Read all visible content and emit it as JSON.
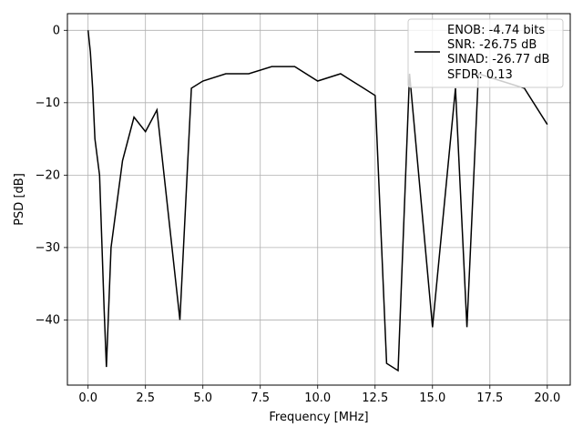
{
  "chart_data": {
    "type": "line",
    "xlabel": "Frequency [MHz]",
    "ylabel": "PSD [dB]",
    "xlim": [
      -0.9,
      21.0
    ],
    "ylim": [
      -49.0,
      2.3
    ],
    "xticks": [
      0.0,
      2.5,
      5.0,
      7.5,
      10.0,
      12.5,
      15.0,
      17.5,
      20.0
    ],
    "xtick_labels": [
      "0.0",
      "2.5",
      "5.0",
      "7.5",
      "10.0",
      "12.5",
      "15.0",
      "17.5",
      "20.0"
    ],
    "yticks": [
      0,
      -10,
      -20,
      -30,
      -40
    ],
    "ytick_labels": [
      "0",
      "−10",
      "−20",
      "−30",
      "−40"
    ],
    "grid": true,
    "legend_position": "top-right",
    "series_color": "#000000",
    "legend": [
      "ENOB: -4.74 bits",
      "SNR: -26.75 dB",
      "SINAD: -26.77 dB",
      "SFDR: 0.13"
    ],
    "series": [
      {
        "x": [
          0.0,
          0.1,
          0.2,
          0.3,
          0.5,
          0.7,
          0.8,
          1.0,
          1.5,
          2.0,
          2.5,
          3.0,
          4.0,
          4.5,
          5.0,
          6.0,
          7.0,
          8.0,
          9.0,
          10.0,
          11.0,
          12.0,
          12.5,
          13.0,
          13.5,
          14.0,
          15.0,
          16.0,
          16.5,
          17.0,
          18.0,
          19.0,
          20.0
        ],
        "y": [
          0.0,
          -3.0,
          -8.0,
          -15.0,
          -20.0,
          -38.5,
          -46.5,
          -30.0,
          -18.0,
          -12.0,
          -14.0,
          -11.0,
          -40.0,
          -8.0,
          -7.0,
          -6.0,
          -6.0,
          -5.0,
          -5.0,
          -7.0,
          -6.0,
          -8.0,
          -9.0,
          -46.0,
          -47.0,
          -6.0,
          -41.0,
          -8.0,
          -41.0,
          -6.0,
          -7.0,
          -8.0,
          -13.0
        ]
      }
    ]
  }
}
